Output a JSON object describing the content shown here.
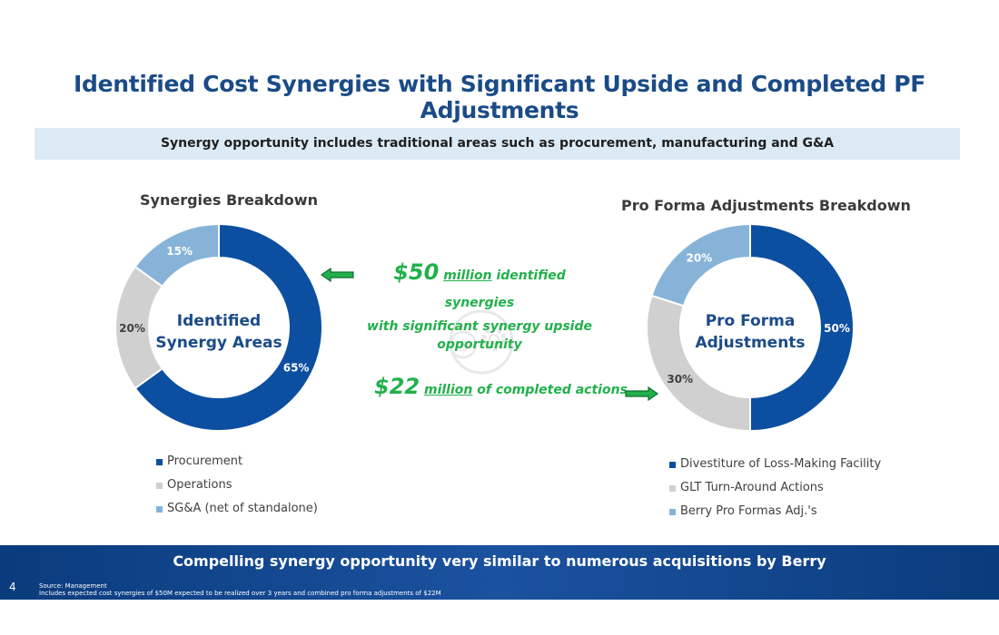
{
  "title": "Identified Cost Synergies with Significant Upside and Completed PF Adjustments",
  "subtitle_bar": "Synergy opportunity includes traditional areas such as procurement, manufacturing and G&A",
  "chart_data": [
    {
      "type": "pie",
      "title": "Synergies Breakdown",
      "center_label": [
        "Identified",
        "Synergy Areas"
      ],
      "categories": [
        "Procurement",
        "Operations",
        "SG&A (net of standalone)"
      ],
      "values": [
        65,
        20,
        15
      ],
      "labels": [
        "65%",
        "20%",
        "15%"
      ],
      "colors": [
        "#0c4fa0",
        "#d0d0d0",
        "#87b3d9"
      ],
      "label_colors": [
        "#ffffff",
        "#404040",
        "#ffffff"
      ],
      "legend_position": "bottom"
    },
    {
      "type": "pie",
      "title": "Pro Forma Adjustments Breakdown",
      "center_label": [
        "Pro Forma",
        "Adjustments"
      ],
      "categories": [
        "Divestiture of Loss-Making Facility",
        "GLT Turn-Around Actions",
        "Berry Pro Formas Adj.'s"
      ],
      "values": [
        50,
        30,
        20
      ],
      "labels": [
        "50%",
        "30%",
        "20%"
      ],
      "colors": [
        "#0c4fa0",
        "#d0d0d0",
        "#87b3d9"
      ],
      "label_colors": [
        "#ffffff",
        "#404040",
        "#ffffff"
      ],
      "legend_position": "bottom"
    }
  ],
  "callouts": {
    "synergies": {
      "amount": "$50",
      "unit": "million",
      "rest1": " identified synergies",
      "line2": "with significant synergy upside",
      "line3": "opportunity"
    },
    "completed": {
      "amount": "$22",
      "unit": "million",
      "rest": " of completed actions"
    }
  },
  "bottom_bar": "Compelling synergy opportunity very similar to numerous acquisitions by Berry",
  "page_number": "4",
  "footnotes": [
    "Source: Management",
    "Includes expected cost synergies of $50M expected to be realized over 3 years and combined pro forma adjustments of $22M"
  ],
  "colors": {
    "title": "#1a4b87",
    "accent_green": "#22b04b",
    "bar_blue": "#0a3b7c"
  }
}
